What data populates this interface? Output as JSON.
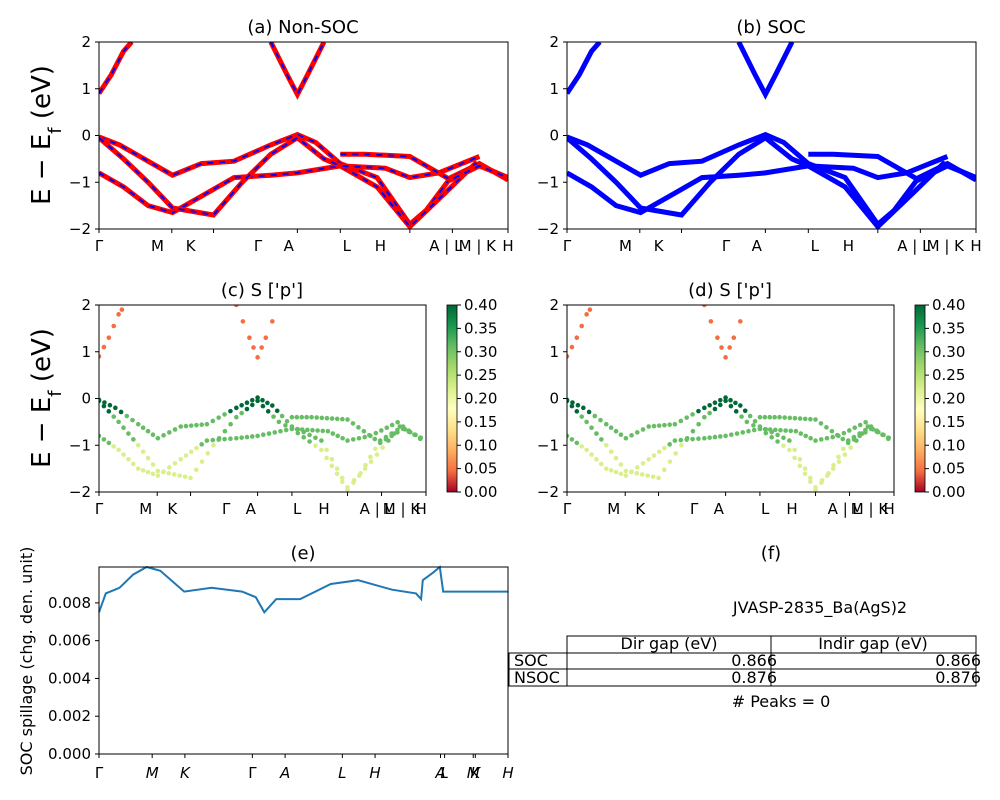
{
  "kpath_labels": [
    "Γ",
    "M",
    "K",
    "Γ",
    "A",
    "L",
    "H",
    "A | L",
    "M | K",
    "H"
  ],
  "kpath_frac": [
    0.0,
    0.178,
    0.28,
    0.485,
    0.59,
    0.76,
    0.864,
    1.0
  ],
  "panel_a": {
    "title": "(a) Non-SOC",
    "ylabel": "E − E_f (eV)",
    "ylim": [
      -2,
      2
    ],
    "yticks": [
      "−2",
      "−1",
      "0",
      "1",
      "2"
    ]
  },
  "panel_b": {
    "title": "(b) SOC",
    "ylim": [
      -2,
      2
    ],
    "yticks": [
      "−2",
      "−1",
      "0",
      "1",
      "2"
    ]
  },
  "panel_c": {
    "title": "(c)  S ['p']",
    "ylabel": "E − E_f (eV)"
  },
  "panel_d": {
    "title": "(d) S ['p']"
  },
  "colorbar": {
    "ticks": [
      "0.00",
      "0.05",
      "0.10",
      "0.15",
      "0.20",
      "0.25",
      "0.30",
      "0.35",
      "0.40"
    ],
    "vmin": 0.0,
    "vmax": 0.4,
    "cmap": [
      "#a50026",
      "#f46d43",
      "#fdae61",
      "#fee08b",
      "#ffffbf",
      "#d9ef8b",
      "#a6d96a",
      "#66bd63",
      "#1a9850",
      "#006837"
    ]
  },
  "panel_e": {
    "title": "(e)",
    "ylabel": "SOC spillage (chg. den. unit)",
    "yticks": [
      "0.000",
      "0.002",
      "0.004",
      "0.006",
      "0.008"
    ],
    "xlabels": [
      "Γ",
      "M",
      "K",
      "Γ",
      "A",
      "L",
      "H",
      "A",
      "L",
      "M",
      "K",
      "H"
    ]
  },
  "panel_f": {
    "title": "(f)",
    "material": "JVASP-2835_Ba(AgS)2",
    "table": {
      "headers": [
        "Dir gap (eV)",
        "Indir gap (eV)"
      ],
      "rows": [
        {
          "label": "SOC",
          "dir": "0.866",
          "indir": "0.866"
        },
        {
          "label": "NSOC",
          "dir": "0.876",
          "indir": "0.876"
        }
      ]
    },
    "peaks": "# Peaks = 0"
  },
  "colors": {
    "nonsoc_line": "#ff0000",
    "nonsoc_dash": "#0000ff",
    "soc_line": "#0000ff",
    "spillage_line": "#1f77b4"
  },
  "chart_data": [
    {
      "type": "line",
      "title": "(a) Non-SOC",
      "ylim": [
        -2,
        2
      ],
      "series": [
        {
          "values": [
            [
              0,
              0.9
            ],
            [
              0.03,
              1.3
            ],
            [
              0.06,
              1.8
            ],
            [
              0.08,
              2.0
            ]
          ]
        },
        {
          "values": [
            [
              0.42,
              2.0
            ],
            [
              0.46,
              1.3
            ],
            [
              0.485,
              0.88
            ],
            [
              0.51,
              1.3
            ],
            [
              0.55,
              2.0
            ]
          ]
        },
        {
          "values": [
            [
              0,
              -0.03
            ],
            [
              0.05,
              -0.2
            ],
            [
              0.12,
              -0.55
            ],
            [
              0.18,
              -0.85
            ],
            [
              0.25,
              -0.6
            ],
            [
              0.33,
              -0.55
            ],
            [
              0.42,
              -0.2
            ],
            [
              0.485,
              0.02
            ],
            [
              0.53,
              -0.15
            ],
            [
              0.59,
              -0.6
            ],
            [
              0.68,
              -0.9
            ],
            [
              0.76,
              -1.9
            ],
            [
              0.8,
              -1.6
            ],
            [
              0.86,
              -0.9
            ],
            [
              0.93,
              -0.6
            ],
            [
              1.0,
              -0.95
            ]
          ]
        },
        {
          "values": [
            [
              0,
              -0.8
            ],
            [
              0.06,
              -1.1
            ],
            [
              0.12,
              -1.5
            ],
            [
              0.18,
              -1.65
            ],
            [
              0.25,
              -1.3
            ],
            [
              0.33,
              -0.9
            ],
            [
              0.42,
              -0.85
            ],
            [
              0.485,
              -0.8
            ],
            [
              0.59,
              -0.65
            ],
            [
              0.68,
              -1.1
            ],
            [
              0.76,
              -1.95
            ],
            [
              0.85,
              -1.2
            ],
            [
              0.92,
              -0.6
            ],
            [
              1.0,
              -0.9
            ]
          ]
        },
        {
          "values": [
            [
              0,
              -0.05
            ],
            [
              0.06,
              -0.5
            ],
            [
              0.12,
              -1.0
            ],
            [
              0.18,
              -1.55
            ],
            [
              0.28,
              -1.7
            ],
            [
              0.35,
              -1.0
            ],
            [
              0.42,
              -0.4
            ],
            [
              0.485,
              -0.05
            ],
            [
              0.55,
              -0.5
            ],
            [
              0.59,
              -0.65
            ],
            [
              0.7,
              -0.7
            ],
            [
              0.76,
              -0.9
            ],
            [
              0.83,
              -0.8
            ],
            [
              0.93,
              -0.45
            ]
          ]
        },
        {
          "values": [
            [
              0.59,
              -0.4
            ],
            [
              0.65,
              -0.4
            ],
            [
              0.76,
              -0.45
            ],
            [
              0.86,
              -0.95
            ],
            [
              0.93,
              -0.65
            ],
            [
              1.0,
              -0.9
            ]
          ]
        }
      ]
    },
    {
      "type": "line",
      "title": "(b) SOC",
      "ylim": [
        -2,
        2
      ],
      "series": [
        {
          "values": [
            [
              0,
              0.9
            ],
            [
              0.03,
              1.3
            ],
            [
              0.06,
              1.8
            ],
            [
              0.08,
              2.0
            ]
          ]
        },
        {
          "values": [
            [
              0.42,
              2.0
            ],
            [
              0.46,
              1.3
            ],
            [
              0.485,
              0.88
            ],
            [
              0.51,
              1.3
            ],
            [
              0.55,
              2.0
            ]
          ]
        },
        {
          "values": [
            [
              0,
              -0.03
            ],
            [
              0.05,
              -0.2
            ],
            [
              0.12,
              -0.55
            ],
            [
              0.18,
              -0.85
            ],
            [
              0.25,
              -0.6
            ],
            [
              0.33,
              -0.55
            ],
            [
              0.42,
              -0.2
            ],
            [
              0.485,
              0.02
            ],
            [
              0.53,
              -0.15
            ],
            [
              0.59,
              -0.6
            ],
            [
              0.68,
              -0.9
            ],
            [
              0.76,
              -1.9
            ],
            [
              0.8,
              -1.6
            ],
            [
              0.86,
              -0.9
            ],
            [
              0.93,
              -0.6
            ],
            [
              1.0,
              -0.95
            ]
          ]
        },
        {
          "values": [
            [
              0,
              -0.8
            ],
            [
              0.06,
              -1.1
            ],
            [
              0.12,
              -1.5
            ],
            [
              0.18,
              -1.65
            ],
            [
              0.25,
              -1.3
            ],
            [
              0.33,
              -0.9
            ],
            [
              0.42,
              -0.85
            ],
            [
              0.485,
              -0.8
            ],
            [
              0.59,
              -0.65
            ],
            [
              0.68,
              -1.1
            ],
            [
              0.76,
              -1.95
            ],
            [
              0.85,
              -1.2
            ],
            [
              0.92,
              -0.6
            ],
            [
              1.0,
              -0.9
            ]
          ]
        },
        {
          "values": [
            [
              0,
              -0.05
            ],
            [
              0.06,
              -0.5
            ],
            [
              0.12,
              -1.0
            ],
            [
              0.18,
              -1.55
            ],
            [
              0.28,
              -1.7
            ],
            [
              0.35,
              -1.0
            ],
            [
              0.42,
              -0.4
            ],
            [
              0.485,
              -0.05
            ],
            [
              0.55,
              -0.5
            ],
            [
              0.59,
              -0.65
            ],
            [
              0.7,
              -0.7
            ],
            [
              0.76,
              -0.9
            ],
            [
              0.83,
              -0.8
            ],
            [
              0.93,
              -0.45
            ]
          ]
        },
        {
          "values": [
            [
              0.59,
              -0.4
            ],
            [
              0.65,
              -0.4
            ],
            [
              0.76,
              -0.45
            ],
            [
              0.86,
              -0.95
            ],
            [
              0.93,
              -0.65
            ],
            [
              1.0,
              -0.9
            ]
          ]
        }
      ]
    },
    {
      "type": "scatter",
      "title": "(e)",
      "ylim": [
        0,
        0.0099
      ],
      "series": [
        {
          "values": [
            [
              0,
              0.0075
            ],
            [
              0.02,
              0.0085
            ],
            [
              0.06,
              0.0088
            ],
            [
              0.1,
              0.0095
            ],
            [
              0.14,
              0.0099
            ],
            [
              0.18,
              0.0097
            ],
            [
              0.25,
              0.0086
            ],
            [
              0.33,
              0.0088
            ],
            [
              0.42,
              0.0086
            ],
            [
              0.46,
              0.0083
            ],
            [
              0.485,
              0.0075
            ],
            [
              0.5,
              0.0078
            ],
            [
              0.52,
              0.0082
            ],
            [
              0.59,
              0.0082
            ],
            [
              0.68,
              0.009
            ],
            [
              0.76,
              0.0092
            ],
            [
              0.86,
              0.0087
            ],
            [
              0.93,
              0.0085
            ],
            [
              0.945,
              0.0082
            ],
            [
              0.95,
              0.0092
            ],
            [
              0.98,
              0.0096
            ],
            [
              1.0,
              0.0099
            ],
            [
              1.01,
              0.0086
            ],
            [
              1.1,
              0.0086
            ],
            [
              1.2,
              0.0086
            ]
          ]
        }
      ]
    }
  ]
}
